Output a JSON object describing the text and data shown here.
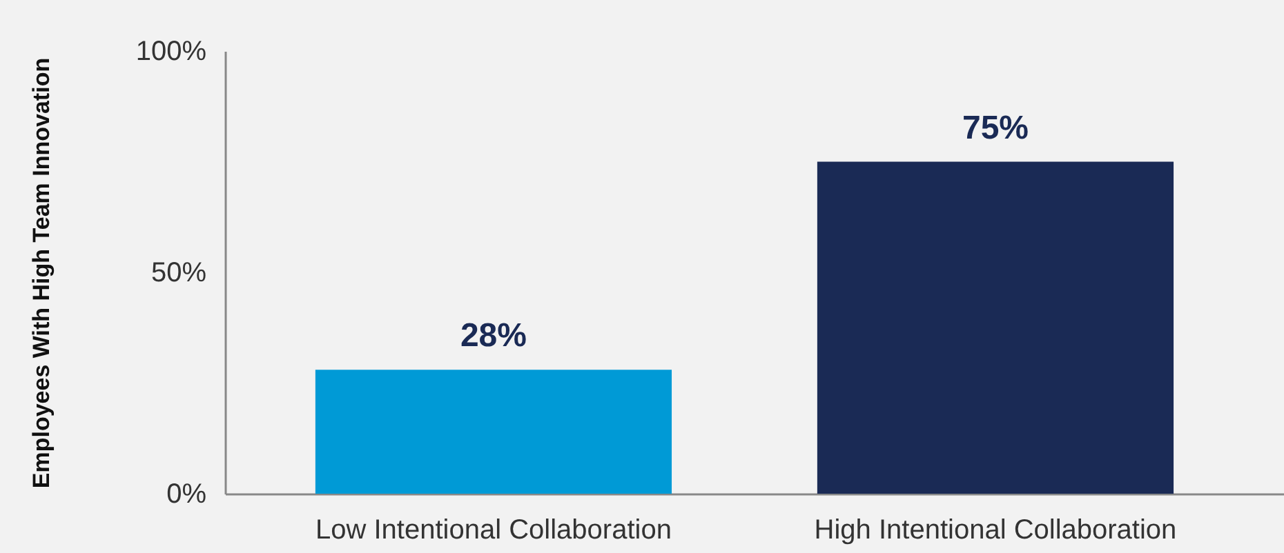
{
  "chart_data": {
    "type": "bar",
    "ylabel": "Employees With High Team Innovation",
    "categories": [
      "Low Intentional Collaboration",
      "High Intentional Collaboration"
    ],
    "values": [
      28,
      75
    ],
    "colors": [
      "#009ad6",
      "#1a2a55"
    ],
    "value_labels": [
      "28%",
      "75%"
    ],
    "ylim": [
      0,
      100
    ],
    "yticks": [
      {
        "value": 0,
        "label": "0%"
      },
      {
        "value": 50,
        "label": "50%"
      },
      {
        "value": 100,
        "label": "100%"
      }
    ],
    "grid": false,
    "legend": false
  }
}
